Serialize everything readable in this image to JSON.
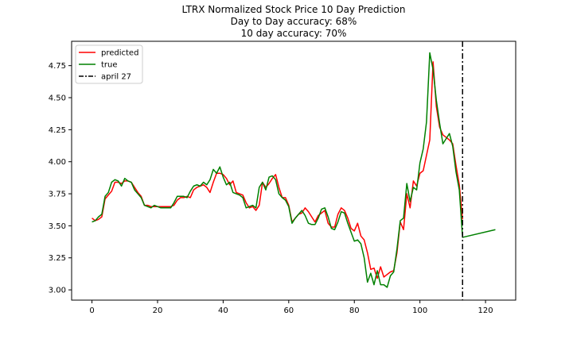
{
  "chart_data": {
    "type": "line",
    "title": "LTRX Normalized Stock Price 10 Day Prediction",
    "subtitle_lines": [
      "Day to Day accuracy: 68%",
      "10 day accuracy: 70%"
    ],
    "xlabel": "",
    "ylabel": "",
    "xlim": [
      -6.2,
      129.2
    ],
    "ylim": [
      2.92,
      4.94
    ],
    "x_ticks": [
      0,
      20,
      40,
      60,
      80,
      100,
      120
    ],
    "y_ticks": [
      3.0,
      3.25,
      3.5,
      3.75,
      4.0,
      4.25,
      4.5,
      4.75
    ],
    "x_tick_labels": [
      "0",
      "20",
      "40",
      "60",
      "80",
      "100",
      "120"
    ],
    "y_tick_labels": [
      "3.00",
      "3.25",
      "3.50",
      "3.75",
      "4.00",
      "4.25",
      "4.50",
      "4.75"
    ],
    "grid": false,
    "legend_position": "upper-left",
    "series": [
      {
        "name": "predicted",
        "color": "#ff0000",
        "style": "solid",
        "points": [
          [
            0,
            3.56
          ],
          [
            1,
            3.54
          ],
          [
            2,
            3.55
          ],
          [
            3,
            3.57
          ],
          [
            4,
            3.71
          ],
          [
            5,
            3.74
          ],
          [
            6,
            3.77
          ],
          [
            7,
            3.84
          ],
          [
            8,
            3.84
          ],
          [
            9,
            3.83
          ],
          [
            10,
            3.85
          ],
          [
            11,
            3.85
          ],
          [
            12,
            3.84
          ],
          [
            13,
            3.8
          ],
          [
            14,
            3.76
          ],
          [
            15,
            3.73
          ],
          [
            16,
            3.66
          ],
          [
            17,
            3.66
          ],
          [
            18,
            3.65
          ],
          [
            19,
            3.65
          ],
          [
            20,
            3.65
          ],
          [
            21,
            3.65
          ],
          [
            22,
            3.65
          ],
          [
            23,
            3.65
          ],
          [
            24,
            3.65
          ],
          [
            25,
            3.66
          ],
          [
            26,
            3.7
          ],
          [
            27,
            3.72
          ],
          [
            28,
            3.72
          ],
          [
            29,
            3.73
          ],
          [
            30,
            3.72
          ],
          [
            31,
            3.78
          ],
          [
            32,
            3.8
          ],
          [
            33,
            3.81
          ],
          [
            34,
            3.82
          ],
          [
            35,
            3.8
          ],
          [
            36,
            3.76
          ],
          [
            37,
            3.84
          ],
          [
            38,
            3.91
          ],
          [
            39,
            3.91
          ],
          [
            40,
            3.9
          ],
          [
            41,
            3.87
          ],
          [
            42,
            3.82
          ],
          [
            43,
            3.85
          ],
          [
            44,
            3.76
          ],
          [
            45,
            3.75
          ],
          [
            46,
            3.74
          ],
          [
            47,
            3.68
          ],
          [
            48,
            3.64
          ],
          [
            49,
            3.65
          ],
          [
            50,
            3.62
          ],
          [
            51,
            3.66
          ],
          [
            52,
            3.84
          ],
          [
            53,
            3.8
          ],
          [
            54,
            3.83
          ],
          [
            55,
            3.87
          ],
          [
            56,
            3.9
          ],
          [
            57,
            3.8
          ],
          [
            58,
            3.72
          ],
          [
            59,
            3.72
          ],
          [
            60,
            3.66
          ],
          [
            61,
            3.53
          ],
          [
            62,
            3.56
          ],
          [
            63,
            3.59
          ],
          [
            64,
            3.6
          ],
          [
            65,
            3.64
          ],
          [
            66,
            3.61
          ],
          [
            67,
            3.57
          ],
          [
            68,
            3.53
          ],
          [
            69,
            3.58
          ],
          [
            70,
            3.6
          ],
          [
            71,
            3.62
          ],
          [
            72,
            3.52
          ],
          [
            73,
            3.49
          ],
          [
            74,
            3.49
          ],
          [
            75,
            3.59
          ],
          [
            76,
            3.64
          ],
          [
            77,
            3.62
          ],
          [
            78,
            3.56
          ],
          [
            79,
            3.48
          ],
          [
            80,
            3.46
          ],
          [
            81,
            3.52
          ],
          [
            82,
            3.42
          ],
          [
            83,
            3.39
          ],
          [
            84,
            3.29
          ],
          [
            85,
            3.16
          ],
          [
            86,
            3.17
          ],
          [
            87,
            3.09
          ],
          [
            88,
            3.18
          ],
          [
            89,
            3.1
          ],
          [
            90,
            3.12
          ],
          [
            91,
            3.14
          ],
          [
            92,
            3.15
          ],
          [
            93,
            3.29
          ],
          [
            94,
            3.53
          ],
          [
            95,
            3.47
          ],
          [
            96,
            3.75
          ],
          [
            97,
            3.64
          ],
          [
            98,
            3.85
          ],
          [
            99,
            3.81
          ],
          [
            100,
            3.91
          ],
          [
            101,
            3.93
          ],
          [
            102,
            4.05
          ],
          [
            103,
            4.17
          ],
          [
            104,
            4.78
          ],
          [
            105,
            4.43
          ],
          [
            106,
            4.27
          ],
          [
            107,
            4.21
          ],
          [
            108,
            4.19
          ],
          [
            109,
            4.17
          ],
          [
            110,
            4.14
          ],
          [
            111,
            3.97
          ],
          [
            112,
            3.82
          ],
          [
            113,
            3.55
          ]
        ]
      },
      {
        "name": "true",
        "color": "#008000",
        "style": "solid",
        "points": [
          [
            0,
            3.53
          ],
          [
            1,
            3.54
          ],
          [
            2,
            3.57
          ],
          [
            3,
            3.59
          ],
          [
            4,
            3.73
          ],
          [
            5,
            3.76
          ],
          [
            6,
            3.84
          ],
          [
            7,
            3.86
          ],
          [
            8,
            3.85
          ],
          [
            9,
            3.81
          ],
          [
            10,
            3.87
          ],
          [
            11,
            3.85
          ],
          [
            12,
            3.84
          ],
          [
            13,
            3.78
          ],
          [
            14,
            3.75
          ],
          [
            15,
            3.72
          ],
          [
            16,
            3.66
          ],
          [
            17,
            3.65
          ],
          [
            18,
            3.64
          ],
          [
            19,
            3.66
          ],
          [
            20,
            3.65
          ],
          [
            21,
            3.64
          ],
          [
            22,
            3.64
          ],
          [
            23,
            3.64
          ],
          [
            24,
            3.64
          ],
          [
            25,
            3.68
          ],
          [
            26,
            3.73
          ],
          [
            27,
            3.73
          ],
          [
            28,
            3.73
          ],
          [
            29,
            3.72
          ],
          [
            30,
            3.77
          ],
          [
            31,
            3.81
          ],
          [
            32,
            3.82
          ],
          [
            33,
            3.81
          ],
          [
            34,
            3.84
          ],
          [
            35,
            3.82
          ],
          [
            36,
            3.86
          ],
          [
            37,
            3.94
          ],
          [
            38,
            3.91
          ],
          [
            39,
            3.96
          ],
          [
            40,
            3.88
          ],
          [
            41,
            3.82
          ],
          [
            42,
            3.84
          ],
          [
            43,
            3.76
          ],
          [
            44,
            3.75
          ],
          [
            45,
            3.74
          ],
          [
            46,
            3.72
          ],
          [
            47,
            3.64
          ],
          [
            48,
            3.65
          ],
          [
            49,
            3.66
          ],
          [
            50,
            3.64
          ],
          [
            51,
            3.8
          ],
          [
            52,
            3.84
          ],
          [
            53,
            3.78
          ],
          [
            54,
            3.88
          ],
          [
            55,
            3.89
          ],
          [
            56,
            3.86
          ],
          [
            57,
            3.75
          ],
          [
            58,
            3.72
          ],
          [
            59,
            3.7
          ],
          [
            60,
            3.65
          ],
          [
            61,
            3.52
          ],
          [
            62,
            3.56
          ],
          [
            63,
            3.59
          ],
          [
            64,
            3.62
          ],
          [
            65,
            3.58
          ],
          [
            66,
            3.52
          ],
          [
            67,
            3.51
          ],
          [
            68,
            3.51
          ],
          [
            69,
            3.56
          ],
          [
            70,
            3.63
          ],
          [
            71,
            3.64
          ],
          [
            72,
            3.57
          ],
          [
            73,
            3.48
          ],
          [
            74,
            3.47
          ],
          [
            75,
            3.53
          ],
          [
            76,
            3.61
          ],
          [
            77,
            3.6
          ],
          [
            78,
            3.52
          ],
          [
            79,
            3.45
          ],
          [
            80,
            3.38
          ],
          [
            81,
            3.39
          ],
          [
            82,
            3.36
          ],
          [
            83,
            3.25
          ],
          [
            84,
            3.06
          ],
          [
            85,
            3.13
          ],
          [
            86,
            3.04
          ],
          [
            87,
            3.15
          ],
          [
            88,
            3.04
          ],
          [
            89,
            3.04
          ],
          [
            90,
            3.02
          ],
          [
            91,
            3.11
          ],
          [
            92,
            3.14
          ],
          [
            93,
            3.32
          ],
          [
            94,
            3.54
          ],
          [
            95,
            3.56
          ],
          [
            96,
            3.83
          ],
          [
            97,
            3.69
          ],
          [
            98,
            3.8
          ],
          [
            99,
            3.78
          ],
          [
            100,
            3.99
          ],
          [
            101,
            4.1
          ],
          [
            102,
            4.31
          ],
          [
            103,
            4.85
          ],
          [
            104,
            4.72
          ],
          [
            105,
            4.48
          ],
          [
            106,
            4.3
          ],
          [
            107,
            4.14
          ],
          [
            108,
            4.18
          ],
          [
            109,
            4.22
          ],
          [
            110,
            4.12
          ],
          [
            111,
            3.92
          ],
          [
            112,
            3.78
          ],
          [
            113,
            3.41
          ],
          [
            123,
            3.47
          ]
        ]
      },
      {
        "name": "april 27",
        "color": "#000000",
        "style": "dashdot",
        "vertical_x": 113
      }
    ]
  }
}
